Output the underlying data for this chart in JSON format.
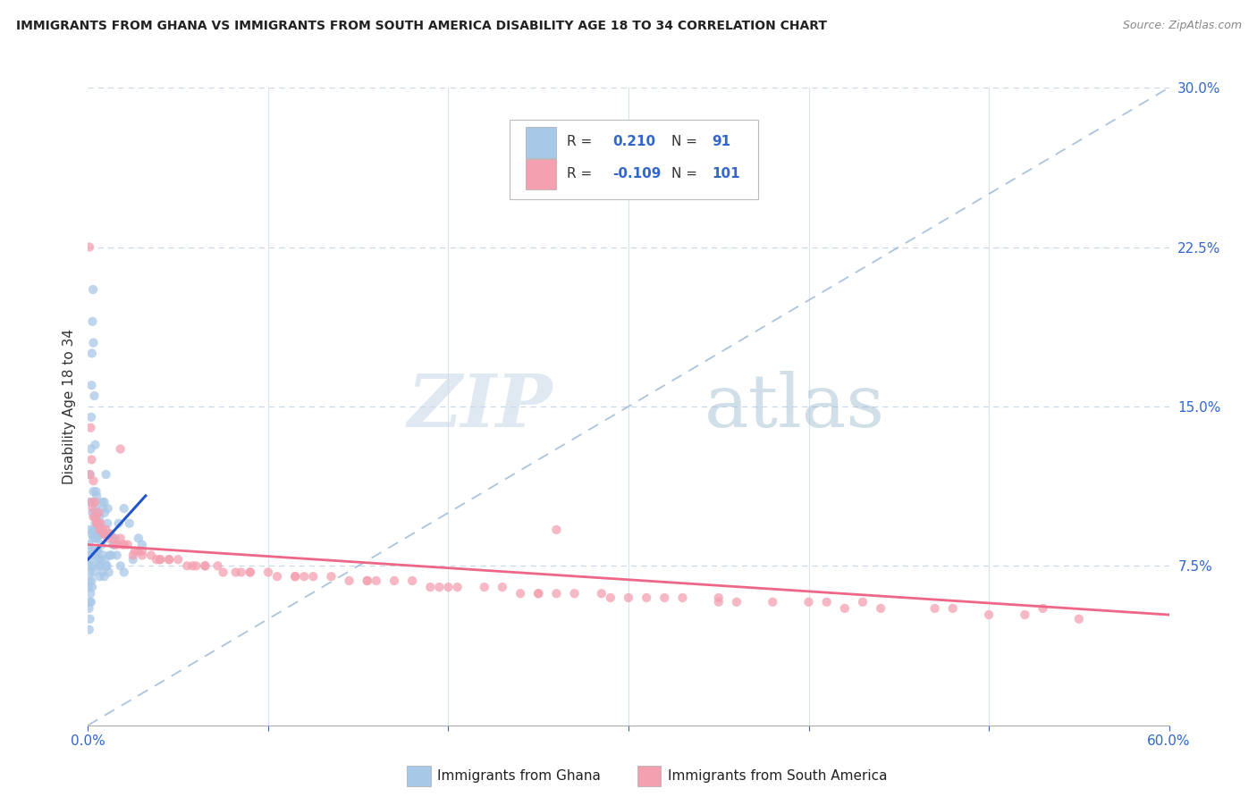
{
  "title": "IMMIGRANTS FROM GHANA VS IMMIGRANTS FROM SOUTH AMERICA DISABILITY AGE 18 TO 34 CORRELATION CHART",
  "source": "Source: ZipAtlas.com",
  "ylabel_label": "Disability Age 18 to 34",
  "color_blue": "#a8c8e8",
  "color_pink": "#f4a0b0",
  "color_blue_line": "#2255cc",
  "color_pink_line": "#ee6688",
  "color_dashed": "#aac4dd",
  "ghana_x": [
    0.05,
    0.08,
    0.1,
    0.12,
    0.15,
    0.18,
    0.2,
    0.22,
    0.25,
    0.28,
    0.3,
    0.35,
    0.4,
    0.45,
    0.5,
    0.55,
    0.6,
    0.65,
    0.7,
    0.8,
    0.9,
    1.0,
    1.1,
    1.2,
    1.4,
    1.6,
    1.8,
    2.0,
    2.5,
    3.0,
    0.1,
    0.15,
    0.2,
    0.25,
    0.3,
    0.35,
    0.4,
    0.45,
    0.5,
    0.6,
    0.7,
    0.8,
    0.9,
    1.0,
    1.2,
    1.4,
    0.05,
    0.08,
    0.12,
    0.18,
    0.22,
    0.28,
    0.32,
    0.38,
    0.42,
    0.48,
    0.52,
    0.58,
    0.65,
    0.75,
    0.85,
    0.95,
    1.05,
    1.15,
    1.3,
    1.5,
    1.7,
    2.0,
    2.3,
    2.8,
    0.06,
    0.1,
    0.14,
    0.2,
    0.26,
    0.34,
    0.42,
    0.52,
    0.64,
    0.78,
    0.92,
    1.08,
    1.25,
    1.45,
    0.07,
    0.11,
    0.17,
    0.23,
    0.31,
    0.41,
    0.53,
    0.67,
    0.83
  ],
  "ghana_y": [
    8.5,
    9.2,
    10.5,
    11.8,
    13.0,
    14.5,
    16.0,
    17.5,
    19.0,
    20.5,
    18.0,
    15.5,
    13.2,
    11.0,
    9.5,
    8.2,
    7.5,
    7.0,
    7.8,
    9.0,
    10.5,
    11.8,
    10.2,
    9.0,
    8.5,
    8.0,
    7.5,
    7.2,
    7.8,
    8.5,
    7.5,
    8.0,
    9.0,
    10.0,
    11.0,
    10.5,
    9.5,
    8.8,
    8.2,
    7.8,
    7.5,
    7.2,
    7.0,
    7.5,
    8.0,
    8.5,
    6.5,
    6.8,
    7.2,
    7.8,
    8.2,
    8.8,
    9.2,
    9.8,
    10.2,
    10.8,
    10.0,
    9.5,
    9.0,
    8.5,
    8.0,
    7.8,
    7.5,
    7.2,
    8.0,
    8.8,
    9.5,
    10.2,
    9.5,
    8.8,
    5.5,
    5.8,
    6.2,
    6.8,
    7.5,
    8.2,
    8.8,
    9.2,
    9.8,
    10.5,
    10.0,
    9.5,
    9.0,
    8.5,
    4.5,
    5.0,
    5.8,
    6.5,
    7.2,
    8.0,
    8.8,
    9.5,
    10.2
  ],
  "sa_x": [
    0.08,
    0.2,
    0.4,
    0.7,
    1.2,
    2.0,
    3.0,
    4.5,
    6.5,
    9.0,
    12.0,
    16.0,
    20.0,
    25.0,
    30.0,
    35.0,
    42.0,
    50.0,
    55.0,
    0.15,
    0.3,
    0.6,
    1.0,
    1.8,
    2.8,
    4.0,
    6.0,
    8.5,
    11.5,
    15.5,
    19.0,
    24.0,
    29.0,
    36.0,
    44.0,
    52.0,
    0.1,
    0.25,
    0.5,
    0.9,
    1.5,
    2.5,
    3.8,
    5.5,
    7.5,
    10.5,
    14.5,
    19.5,
    25.0,
    31.0,
    38.0,
    47.0,
    0.2,
    0.45,
    0.8,
    1.4,
    2.2,
    3.5,
    5.0,
    7.2,
    10.0,
    13.5,
    18.0,
    23.0,
    28.5,
    35.0,
    43.0,
    0.3,
    0.65,
    1.1,
    1.9,
    3.0,
    4.5,
    6.5,
    9.0,
    12.5,
    17.0,
    22.0,
    27.0,
    33.0,
    41.0,
    0.5,
    0.95,
    1.6,
    2.6,
    4.0,
    5.8,
    8.2,
    11.5,
    15.5,
    20.5,
    26.0,
    32.0,
    40.0,
    48.0,
    1.8,
    26.0,
    53.0
  ],
  "sa_y": [
    22.5,
    12.5,
    10.5,
    9.5,
    9.0,
    8.5,
    8.2,
    7.8,
    7.5,
    7.2,
    7.0,
    6.8,
    6.5,
    6.2,
    6.0,
    5.8,
    5.5,
    5.2,
    5.0,
    14.0,
    11.5,
    10.0,
    9.2,
    8.8,
    8.2,
    7.8,
    7.5,
    7.2,
    7.0,
    6.8,
    6.5,
    6.2,
    6.0,
    5.8,
    5.5,
    5.2,
    11.8,
    10.2,
    9.5,
    9.0,
    8.5,
    8.0,
    7.8,
    7.5,
    7.2,
    7.0,
    6.8,
    6.5,
    6.2,
    6.0,
    5.8,
    5.5,
    10.5,
    9.8,
    9.2,
    8.8,
    8.5,
    8.0,
    7.8,
    7.5,
    7.2,
    7.0,
    6.8,
    6.5,
    6.2,
    6.0,
    5.8,
    9.8,
    9.2,
    8.8,
    8.5,
    8.0,
    7.8,
    7.5,
    7.2,
    7.0,
    6.8,
    6.5,
    6.2,
    6.0,
    5.8,
    9.5,
    9.0,
    8.5,
    8.2,
    7.8,
    7.5,
    7.2,
    7.0,
    6.8,
    6.5,
    6.2,
    6.0,
    5.8,
    5.5,
    13.0,
    9.2,
    5.5
  ]
}
